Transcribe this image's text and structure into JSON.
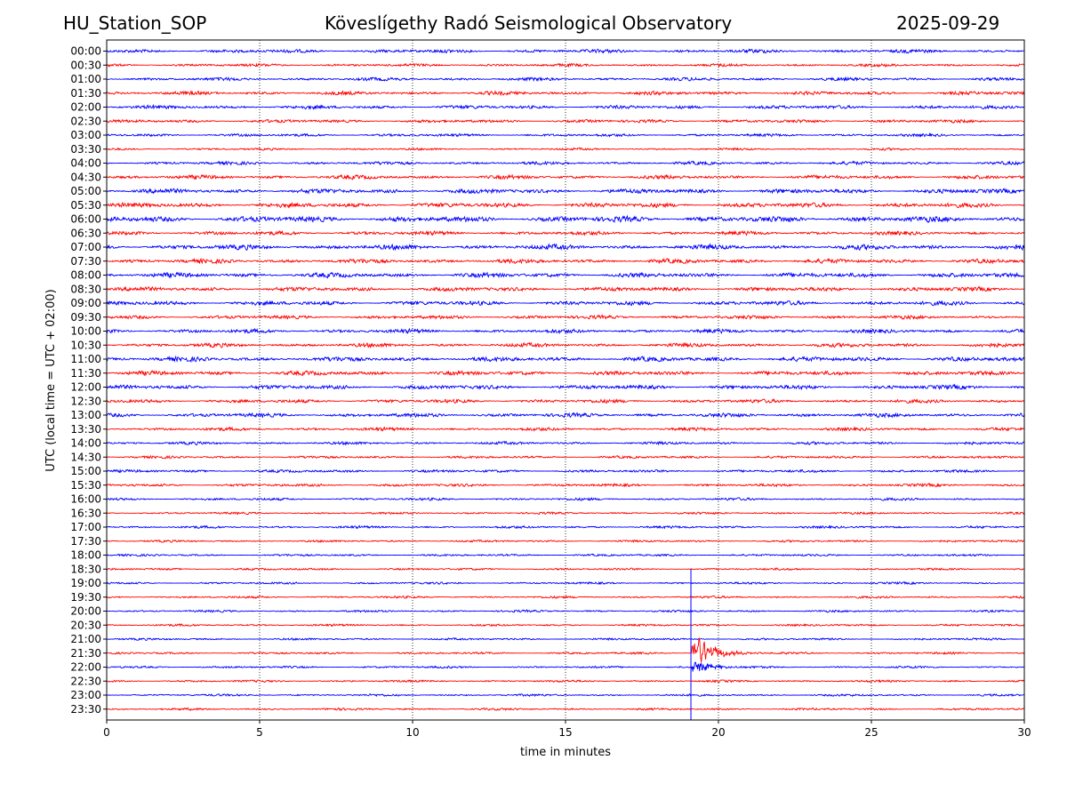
{
  "header": {
    "station": "HU_Station_SOP",
    "observatory": "Köveslígethy Radó Seismological Observatory",
    "date": "2025-09-29"
  },
  "chart_data": {
    "type": "line",
    "title": "Köveslígethy Radó Seismological Observatory",
    "xlabel": "time in minutes",
    "ylabel": "UTC (local time = UTC + 02:00)",
    "xlim": [
      0,
      30
    ],
    "xticks": [
      "0",
      "5",
      "10",
      "15",
      "20",
      "25",
      "30"
    ],
    "xtick_values": [
      0,
      5,
      10,
      15,
      20,
      25,
      30
    ],
    "grid": "vertical dotted at each x tick",
    "row_labels": [
      "00:00",
      "00:30",
      "01:00",
      "01:30",
      "02:00",
      "02:30",
      "03:00",
      "03:30",
      "04:00",
      "04:30",
      "05:00",
      "05:30",
      "06:00",
      "06:30",
      "07:00",
      "07:30",
      "08:00",
      "08:30",
      "09:00",
      "09:30",
      "10:00",
      "10:30",
      "11:00",
      "11:30",
      "12:00",
      "12:30",
      "13:00",
      "13:30",
      "14:00",
      "14:30",
      "15:00",
      "15:30",
      "16:00",
      "16:30",
      "17:00",
      "17:30",
      "18:00",
      "18:30",
      "19:00",
      "19:30",
      "20:00",
      "20:30",
      "21:00",
      "21:30",
      "22:00",
      "22:30",
      "23:00",
      "23:30"
    ],
    "row_noise": [
      2,
      1.6,
      1.8,
      2,
      2,
      1.8,
      1.6,
      1.2,
      1.8,
      2.2,
      2.6,
      2.6,
      3.2,
      2.2,
      2.8,
      2.4,
      2.6,
      2.4,
      2.4,
      2,
      2.2,
      2.2,
      2.6,
      2.4,
      2.4,
      2,
      2.2,
      1.8,
      1.6,
      1.4,
      1.6,
      1.6,
      1.4,
      1.2,
      1.4,
      1.2,
      1.2,
      1.2,
      1.2,
      1.2,
      1.2,
      1.2,
      1.2,
      1.2,
      1.2,
      1.2,
      1.2,
      1.2
    ],
    "series_colors": [
      "#0000ff",
      "#ff0000"
    ],
    "events": [
      {
        "row": "21:30",
        "onset_min": 19.1,
        "duration_min": 2.3,
        "peak_amp": 24
      },
      {
        "row": "22:00",
        "onset_min": 19.1,
        "duration_min": 2.0,
        "peak_amp": 10
      }
    ]
  }
}
